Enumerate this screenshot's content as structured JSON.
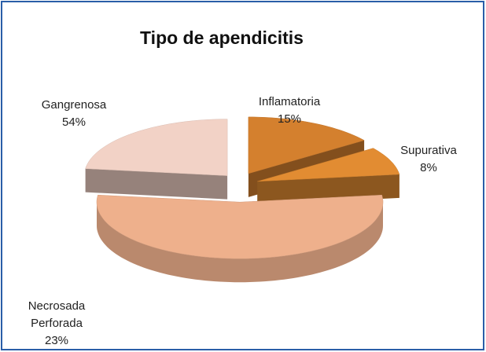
{
  "chart_data": {
    "type": "pie",
    "title": "Tipo de apendicitis",
    "categories": [
      "Inflamatoria",
      "Supurativa",
      "Gangrenosa",
      "Necrosada Perforada"
    ],
    "values": [
      15,
      8,
      54,
      23
    ],
    "value_labels": [
      "15%",
      "8%",
      "54%",
      "23%"
    ],
    "colors": [
      "#d4802e",
      "#e28c32",
      "#eeb08c",
      "#f2d2c6"
    ]
  }
}
